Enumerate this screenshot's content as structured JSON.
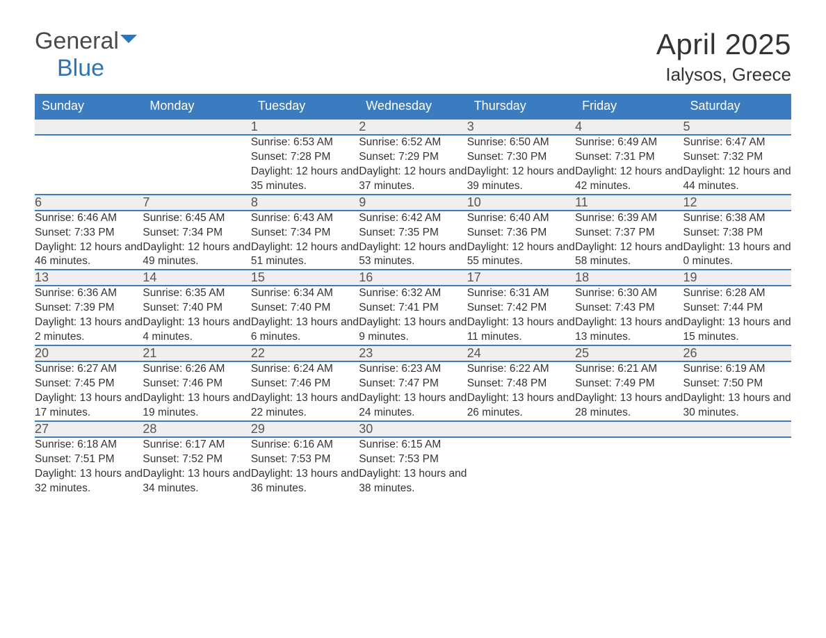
{
  "brand": {
    "general": "General",
    "blue": "Blue"
  },
  "title": "April 2025",
  "location": "Ialysos, Greece",
  "colors": {
    "header_bg": "#3a7cbf",
    "header_text": "#ffffff",
    "daynum_bg": "#efefef",
    "border": "#3a7cbf",
    "brand_blue": "#2e75b6",
    "text": "#333333"
  },
  "day_headers": [
    "Sunday",
    "Monday",
    "Tuesday",
    "Wednesday",
    "Thursday",
    "Friday",
    "Saturday"
  ],
  "weeks": [
    {
      "days": [
        null,
        null,
        {
          "num": "1",
          "sunrise": "6:53 AM",
          "sunset": "7:28 PM",
          "daylight": "12 hours and 35 minutes."
        },
        {
          "num": "2",
          "sunrise": "6:52 AM",
          "sunset": "7:29 PM",
          "daylight": "12 hours and 37 minutes."
        },
        {
          "num": "3",
          "sunrise": "6:50 AM",
          "sunset": "7:30 PM",
          "daylight": "12 hours and 39 minutes."
        },
        {
          "num": "4",
          "sunrise": "6:49 AM",
          "sunset": "7:31 PM",
          "daylight": "12 hours and 42 minutes."
        },
        {
          "num": "5",
          "sunrise": "6:47 AM",
          "sunset": "7:32 PM",
          "daylight": "12 hours and 44 minutes."
        }
      ]
    },
    {
      "days": [
        {
          "num": "6",
          "sunrise": "6:46 AM",
          "sunset": "7:33 PM",
          "daylight": "12 hours and 46 minutes."
        },
        {
          "num": "7",
          "sunrise": "6:45 AM",
          "sunset": "7:34 PM",
          "daylight": "12 hours and 49 minutes."
        },
        {
          "num": "8",
          "sunrise": "6:43 AM",
          "sunset": "7:34 PM",
          "daylight": "12 hours and 51 minutes."
        },
        {
          "num": "9",
          "sunrise": "6:42 AM",
          "sunset": "7:35 PM",
          "daylight": "12 hours and 53 minutes."
        },
        {
          "num": "10",
          "sunrise": "6:40 AM",
          "sunset": "7:36 PM",
          "daylight": "12 hours and 55 minutes."
        },
        {
          "num": "11",
          "sunrise": "6:39 AM",
          "sunset": "7:37 PM",
          "daylight": "12 hours and 58 minutes."
        },
        {
          "num": "12",
          "sunrise": "6:38 AM",
          "sunset": "7:38 PM",
          "daylight": "13 hours and 0 minutes."
        }
      ]
    },
    {
      "days": [
        {
          "num": "13",
          "sunrise": "6:36 AM",
          "sunset": "7:39 PM",
          "daylight": "13 hours and 2 minutes."
        },
        {
          "num": "14",
          "sunrise": "6:35 AM",
          "sunset": "7:40 PM",
          "daylight": "13 hours and 4 minutes."
        },
        {
          "num": "15",
          "sunrise": "6:34 AM",
          "sunset": "7:40 PM",
          "daylight": "13 hours and 6 minutes."
        },
        {
          "num": "16",
          "sunrise": "6:32 AM",
          "sunset": "7:41 PM",
          "daylight": "13 hours and 9 minutes."
        },
        {
          "num": "17",
          "sunrise": "6:31 AM",
          "sunset": "7:42 PM",
          "daylight": "13 hours and 11 minutes."
        },
        {
          "num": "18",
          "sunrise": "6:30 AM",
          "sunset": "7:43 PM",
          "daylight": "13 hours and 13 minutes."
        },
        {
          "num": "19",
          "sunrise": "6:28 AM",
          "sunset": "7:44 PM",
          "daylight": "13 hours and 15 minutes."
        }
      ]
    },
    {
      "days": [
        {
          "num": "20",
          "sunrise": "6:27 AM",
          "sunset": "7:45 PM",
          "daylight": "13 hours and 17 minutes."
        },
        {
          "num": "21",
          "sunrise": "6:26 AM",
          "sunset": "7:46 PM",
          "daylight": "13 hours and 19 minutes."
        },
        {
          "num": "22",
          "sunrise": "6:24 AM",
          "sunset": "7:46 PM",
          "daylight": "13 hours and 22 minutes."
        },
        {
          "num": "23",
          "sunrise": "6:23 AM",
          "sunset": "7:47 PM",
          "daylight": "13 hours and 24 minutes."
        },
        {
          "num": "24",
          "sunrise": "6:22 AM",
          "sunset": "7:48 PM",
          "daylight": "13 hours and 26 minutes."
        },
        {
          "num": "25",
          "sunrise": "6:21 AM",
          "sunset": "7:49 PM",
          "daylight": "13 hours and 28 minutes."
        },
        {
          "num": "26",
          "sunrise": "6:19 AM",
          "sunset": "7:50 PM",
          "daylight": "13 hours and 30 minutes."
        }
      ]
    },
    {
      "days": [
        {
          "num": "27",
          "sunrise": "6:18 AM",
          "sunset": "7:51 PM",
          "daylight": "13 hours and 32 minutes."
        },
        {
          "num": "28",
          "sunrise": "6:17 AM",
          "sunset": "7:52 PM",
          "daylight": "13 hours and 34 minutes."
        },
        {
          "num": "29",
          "sunrise": "6:16 AM",
          "sunset": "7:53 PM",
          "daylight": "13 hours and 36 minutes."
        },
        {
          "num": "30",
          "sunrise": "6:15 AM",
          "sunset": "7:53 PM",
          "daylight": "13 hours and 38 minutes."
        },
        null,
        null,
        null
      ]
    }
  ],
  "labels": {
    "sunrise": "Sunrise:",
    "sunset": "Sunset:",
    "daylight": "Daylight:"
  }
}
